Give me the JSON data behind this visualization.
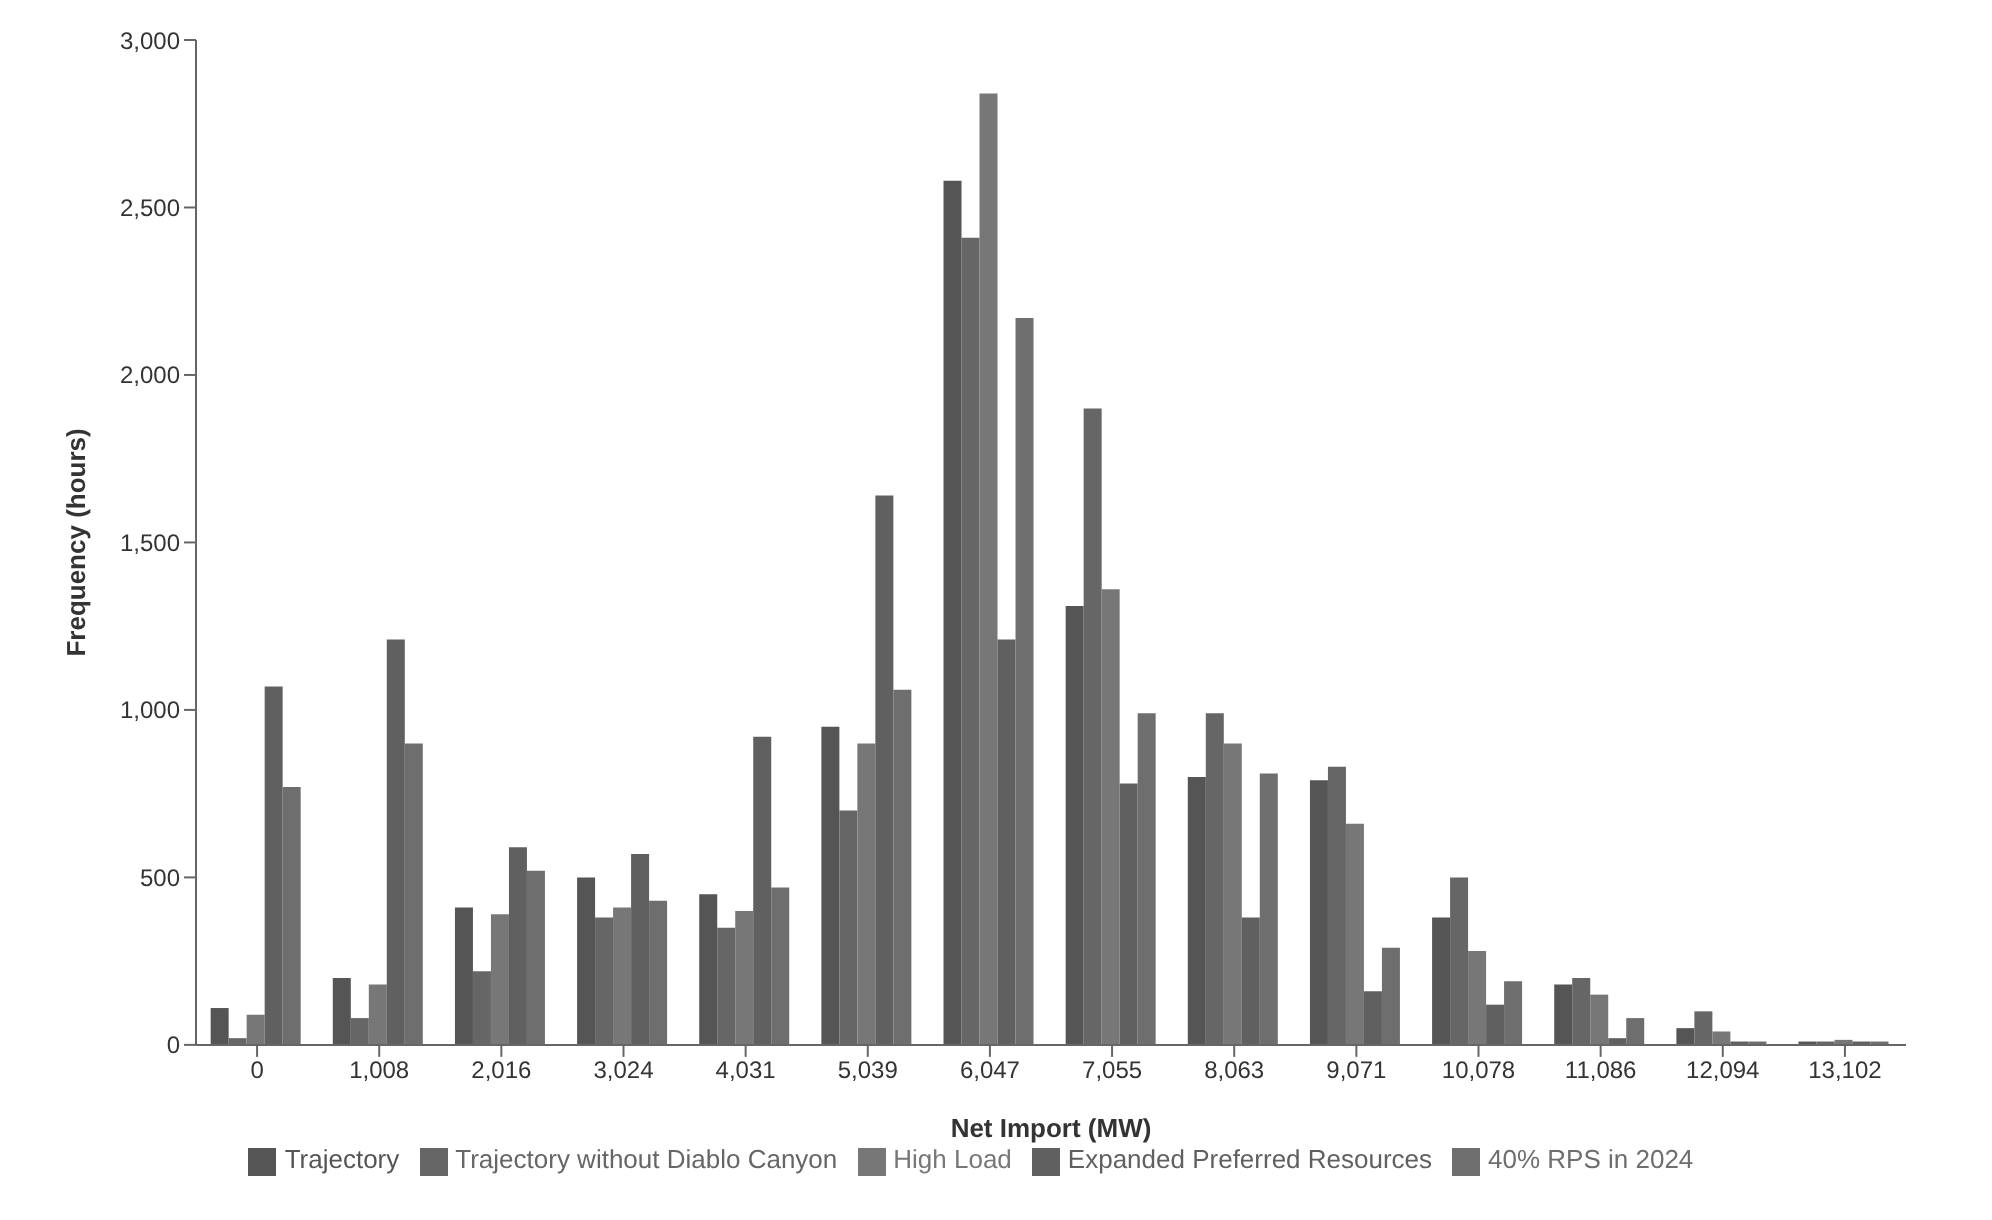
{
  "chart_data": {
    "type": "bar",
    "xlabel": "Net Import (MW)",
    "ylabel": "Frequency (hours)",
    "categories": [
      "0",
      "1,008",
      "2,016",
      "3,024",
      "4,031",
      "5,039",
      "6,047",
      "7,055",
      "8,063",
      "9,071",
      "10,078",
      "11,086",
      "12,094",
      "13,102"
    ],
    "series": [
      {
        "name": "Trajectory",
        "color": "#555555",
        "values": [
          110,
          200,
          410,
          500,
          450,
          950,
          2580,
          1310,
          800,
          790,
          380,
          180,
          50,
          10
        ]
      },
      {
        "name": "Trajectory without Diablo Canyon",
        "color": "#666666",
        "values": [
          20,
          80,
          220,
          380,
          350,
          700,
          2410,
          1900,
          990,
          830,
          500,
          200,
          100,
          10
        ]
      },
      {
        "name": "High Load",
        "color": "#777777",
        "values": [
          90,
          180,
          390,
          410,
          400,
          900,
          2840,
          1360,
          900,
          660,
          280,
          150,
          40,
          15
        ]
      },
      {
        "name": "Expanded Preferred Resources",
        "color": "#606060",
        "values": [
          1070,
          1210,
          590,
          570,
          920,
          1640,
          1210,
          780,
          380,
          160,
          120,
          20,
          10,
          10
        ]
      },
      {
        "name": "40% RPS in 2024",
        "color": "#6e6e6e",
        "values": [
          770,
          900,
          520,
          430,
          470,
          1060,
          2170,
          990,
          810,
          290,
          190,
          80,
          10,
          10
        ]
      }
    ],
    "ylim": [
      0,
      3000
    ],
    "yticks": [
      {
        "value": 0,
        "label": "0"
      },
      {
        "value": 500,
        "label": "500"
      },
      {
        "value": 1000,
        "label": "1,000"
      },
      {
        "value": 1500,
        "label": "1,500"
      },
      {
        "value": 2000,
        "label": "2,000"
      },
      {
        "value": 2500,
        "label": "2,500"
      },
      {
        "value": 3000,
        "label": "3,000"
      }
    ],
    "grid": false,
    "legend": "bottom"
  }
}
